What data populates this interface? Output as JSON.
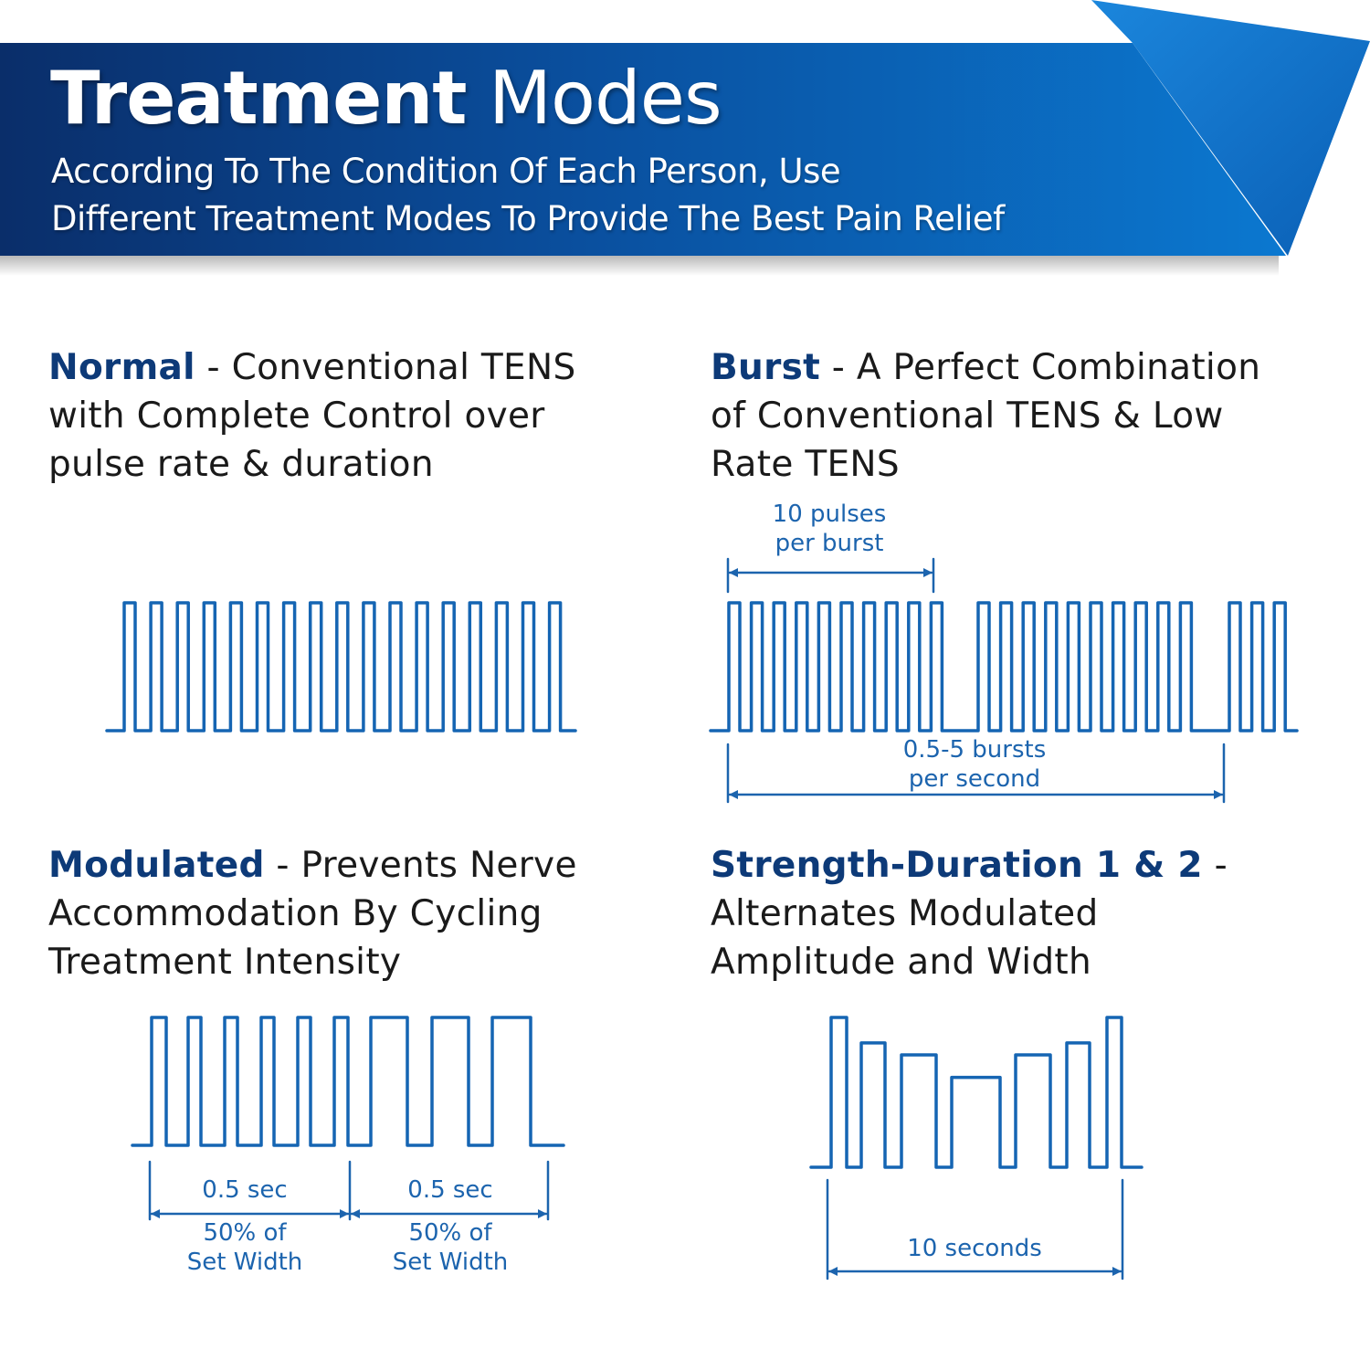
{
  "header": {
    "title_bold": "Treatment",
    "title_light": "Modes",
    "subtitle_lines": [
      "According To The Condition Of Each Person, Use",
      "Different Treatment Modes To Provide The Best Pain Relief"
    ]
  },
  "colors": {
    "banner_dark": "#0a2e6a",
    "banner_light": "#0b78d0",
    "heading": "#0d3a78",
    "waveform": "#1565b3",
    "annotation": "#1c64ae"
  },
  "sections": {
    "normal": {
      "title_bold": "Normal",
      "title_rest": " - Conventional TENS",
      "lines": [
        "with Complete Control over",
        "pulse rate & duration"
      ],
      "pulse_count": 17
    },
    "burst": {
      "title_bold": "Burst",
      "title_rest": " - A Perfect Combination",
      "lines": [
        "of Conventional TENS & Low",
        "Rate TENS"
      ],
      "top_label_lines": [
        "10 pulses",
        "per burst"
      ],
      "bottom_label_lines": [
        "0.5-5 bursts",
        "per second"
      ],
      "pulses_per_burst": [
        10,
        10,
        3
      ]
    },
    "modulated": {
      "title_bold": "Modulated",
      "title_rest": " - Prevents Nerve",
      "lines": [
        "Accommodation By Cycling",
        "Treatment Intensity"
      ],
      "segments": [
        {
          "time_label": "0.5 sec",
          "width_label_lines": [
            "50% of",
            "Set Width"
          ]
        },
        {
          "time_label": "0.5 sec",
          "width_label_lines": [
            "50% of",
            "Set Width"
          ]
        }
      ]
    },
    "strength_duration": {
      "title_bold": "Strength-Duration 1 & 2",
      "title_rest": " -",
      "lines": [
        "Alternates Modulated",
        "Amplitude and Width"
      ],
      "duration_label": "10 seconds",
      "relative_amplitudes": [
        1.0,
        0.83,
        0.75,
        0.6,
        0.75,
        0.83,
        1.0
      ]
    }
  }
}
